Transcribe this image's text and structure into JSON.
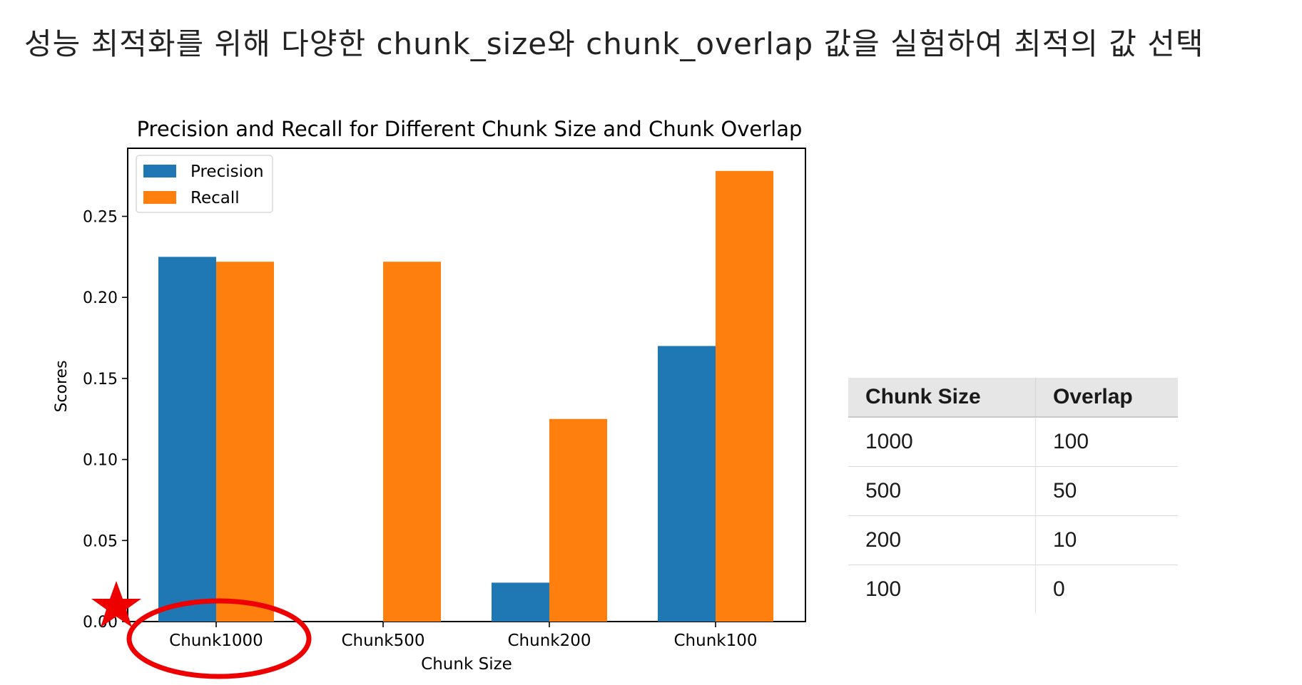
{
  "page": {
    "heading": "성능 최적화를 위해 다양한 chunk_size와 chunk_overlap 값을 실험하여 최적의 값 선택"
  },
  "chart_data": {
    "type": "bar",
    "title": "Precision and Recall for Different Chunk Size and Chunk Overlap",
    "xlabel": "Chunk Size",
    "ylabel": "Scores",
    "categories": [
      "Chunk1000",
      "Chunk500",
      "Chunk200",
      "Chunk100"
    ],
    "series": [
      {
        "name": "Precision",
        "values": [
          0.225,
          0.0,
          0.024,
          0.17
        ],
        "color": "#1f77b4"
      },
      {
        "name": "Recall",
        "values": [
          0.222,
          0.222,
          0.125,
          0.278
        ],
        "color": "#ff7f0e"
      }
    ],
    "ylim": [
      0,
      0.292
    ],
    "yticks": [
      "0.00",
      "0.05",
      "0.10",
      "0.15",
      "0.20",
      "0.25"
    ],
    "grid": false,
    "legend_position": "top-left",
    "annotations": {
      "highlighted_category": "Chunk1000",
      "highlight_color": "#ee0000",
      "marker_icon": "star-icon"
    }
  },
  "table": {
    "headers": [
      "Chunk Size",
      "Overlap"
    ],
    "rows": [
      [
        "1000",
        "100"
      ],
      [
        "500",
        "50"
      ],
      [
        "200",
        "10"
      ],
      [
        "100",
        "0"
      ]
    ]
  }
}
